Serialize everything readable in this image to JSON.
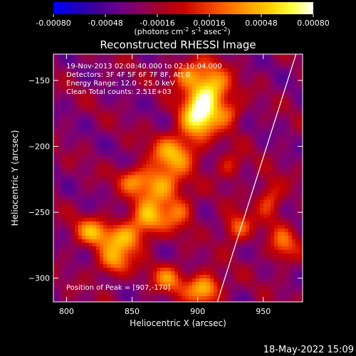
{
  "chart_data": {
    "type": "heatmap",
    "title": "Reconstructed RHESSI Image",
    "xlabel": "Heliocentric X (arcsec)",
    "ylabel": "Heliocentric Y (arcsec)",
    "xlim": [
      790,
      980
    ],
    "ylim": [
      -318,
      -130
    ],
    "xticks": [
      800,
      850,
      900,
      950
    ],
    "yticks": [
      -150,
      -200,
      -250,
      -300
    ],
    "xtick_labels": [
      "800",
      "850",
      "900",
      "950"
    ],
    "ytick_labels": [
      "−150",
      "−200",
      "−250",
      "−300"
    ],
    "colorbar": {
      "range": [
        -0.0008,
        0.0008
      ],
      "tick_labels": [
        "-0.00080",
        "-0.00048",
        "-0.00016",
        "0.00016",
        "0.00048",
        "0.00080"
      ],
      "unit_parts": [
        "(photons cm",
        "-2",
        " s",
        "-1",
        " asec",
        "-2",
        ")"
      ],
      "colors": [
        "#0000ff",
        "#1a00c0",
        "#3f0098",
        "#6a0088",
        "#8a0060",
        "#a80020",
        "#c80000",
        "#e83000",
        "#ff6a00",
        "#ffa000",
        "#ffd000",
        "#ffff40",
        "#ffffff"
      ]
    },
    "annotations": [
      "19-Nov-2013 02:08:40.000 to 02:10:04.000",
      "Detectors: 3F 4F 5F 6F 7F 8F, Att 0",
      "Energy Range: 12.0 - 25.0 keV",
      "Clean     Total counts: 2.51E+03"
    ],
    "peak_label": "Position of Peak = [907,-170]",
    "peak": {
      "x": 907,
      "y": -170
    },
    "limb_line": [
      [
        975,
        -130
      ],
      [
        915,
        -318
      ]
    ],
    "grid": false
  },
  "footer": {
    "timestamp": "18-May-2022 15:09"
  }
}
